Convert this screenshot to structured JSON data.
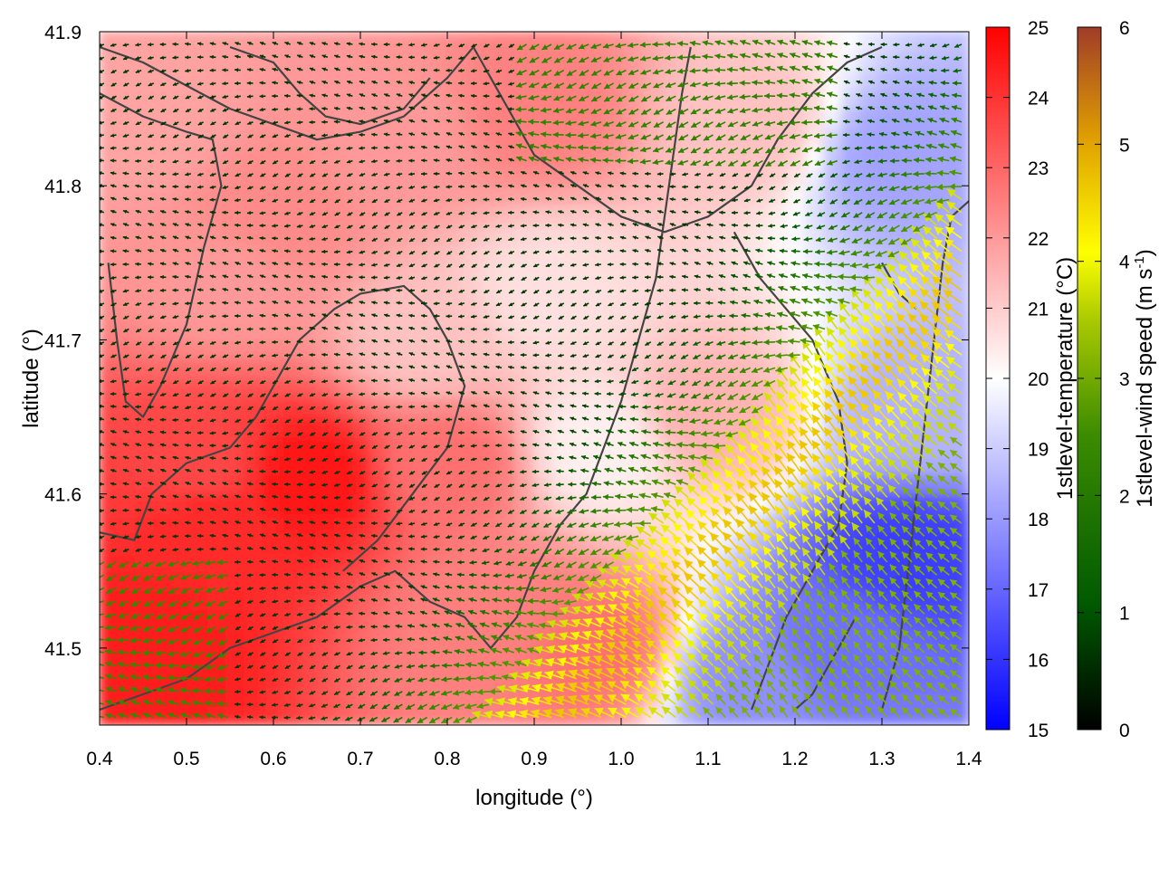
{
  "chart_data": {
    "type": "heatmap",
    "xlabel": "longitude (°)",
    "ylabel": "latitude (°)",
    "xlim": [
      0.4,
      1.4
    ],
    "ylim": [
      41.45,
      41.9
    ],
    "x_ticks": [
      "0.4",
      "0.5",
      "0.6",
      "0.7",
      "0.8",
      "0.9",
      "1.0",
      "1.1",
      "1.2",
      "1.3",
      "1.4"
    ],
    "y_ticks": [
      "41.5",
      "41.6",
      "41.7",
      "41.8",
      "41.9"
    ],
    "temperature": {
      "label": "1stlevel-temperature (°C)",
      "range": [
        15,
        25
      ],
      "ticks": [
        "15",
        "16",
        "17",
        "18",
        "19",
        "20",
        "21",
        "22",
        "23",
        "24",
        "25"
      ],
      "colors": [
        "#0000ff",
        "#ffffff",
        "#ff0000"
      ],
      "regions": [
        {
          "lon": 0.45,
          "lat": 41.5,
          "t": 24.5
        },
        {
          "lon": 0.53,
          "lat": 41.58,
          "t": 24.2
        },
        {
          "lon": 0.52,
          "lat": 41.62,
          "t": 23.6
        },
        {
          "lon": 0.64,
          "lat": 41.61,
          "t": 24.6
        },
        {
          "lon": 0.8,
          "lat": 41.62,
          "t": 22.8
        },
        {
          "lon": 0.85,
          "lat": 41.52,
          "t": 22.5
        },
        {
          "lon": 0.6,
          "lat": 41.78,
          "t": 22.3
        },
        {
          "lon": 0.75,
          "lat": 41.83,
          "t": 22.0
        },
        {
          "lon": 0.9,
          "lat": 41.85,
          "t": 22.5
        },
        {
          "lon": 1.15,
          "lat": 41.84,
          "t": 21.2
        },
        {
          "lon": 1.32,
          "lat": 41.82,
          "t": 18.2
        },
        {
          "lon": 1.35,
          "lat": 41.65,
          "t": 18.5
        },
        {
          "lon": 1.33,
          "lat": 41.56,
          "t": 16.2
        },
        {
          "lon": 1.25,
          "lat": 41.5,
          "t": 17.2
        },
        {
          "lon": 1.15,
          "lat": 41.48,
          "t": 17.8
        },
        {
          "lon": 0.98,
          "lat": 41.63,
          "t": 20.3
        },
        {
          "lon": 1.1,
          "lat": 41.65,
          "t": 21.5
        },
        {
          "lon": 0.78,
          "lat": 41.7,
          "t": 21.2
        },
        {
          "lon": 0.55,
          "lat": 41.74,
          "t": 22.0
        },
        {
          "lon": 0.45,
          "lat": 41.84,
          "t": 21.8
        },
        {
          "lon": 0.97,
          "lat": 41.5,
          "t": 22.8
        },
        {
          "lon": 0.92,
          "lat": 41.73,
          "t": 20.6
        }
      ]
    },
    "wind": {
      "label": "1stlevel-wind speed (m s⁻¹)",
      "label_main": "1stlevel-wind speed (m s",
      "label_sup": "-1",
      "label_end": ")",
      "range": [
        0,
        6
      ],
      "ticks": [
        "0",
        "1",
        "2",
        "3",
        "4",
        "5",
        "6"
      ],
      "colors": [
        "#000000",
        "#005a00",
        "#3c8c00",
        "#a8c800",
        "#ffff00",
        "#e0a000",
        "#a03c28"
      ]
    },
    "contours": [
      [
        [
          0.4,
          41.89
        ],
        [
          0.45,
          41.88
        ],
        [
          0.5,
          41.865
        ],
        [
          0.55,
          41.85
        ],
        [
          0.6,
          41.84
        ],
        [
          0.65,
          41.83
        ],
        [
          0.7,
          41.835
        ],
        [
          0.75,
          41.845
        ],
        [
          0.8,
          41.87
        ],
        [
          0.83,
          41.89
        ]
      ],
      [
        [
          0.4,
          41.86
        ],
        [
          0.45,
          41.845
        ],
        [
          0.5,
          41.835
        ],
        [
          0.53,
          41.83
        ],
        [
          0.54,
          41.8
        ],
        [
          0.52,
          41.76
        ],
        [
          0.5,
          41.71
        ],
        [
          0.47,
          41.67
        ],
        [
          0.45,
          41.65
        ],
        [
          0.43,
          41.66
        ],
        [
          0.42,
          41.7
        ],
        [
          0.41,
          41.75
        ]
      ],
      [
        [
          0.4,
          41.575
        ],
        [
          0.44,
          41.57
        ],
        [
          0.46,
          41.6
        ],
        [
          0.5,
          41.62
        ],
        [
          0.55,
          41.63
        ],
        [
          0.58,
          41.65
        ],
        [
          0.6,
          41.67
        ],
        [
          0.63,
          41.7
        ],
        [
          0.67,
          41.72
        ],
        [
          0.7,
          41.73
        ],
        [
          0.75,
          41.735
        ],
        [
          0.78,
          41.72
        ],
        [
          0.8,
          41.7
        ],
        [
          0.82,
          41.67
        ],
        [
          0.8,
          41.63
        ],
        [
          0.76,
          41.6
        ],
        [
          0.72,
          41.57
        ],
        [
          0.68,
          41.55
        ]
      ],
      [
        [
          0.4,
          41.46
        ],
        [
          0.45,
          41.47
        ],
        [
          0.5,
          41.48
        ],
        [
          0.55,
          41.5
        ],
        [
          0.6,
          41.51
        ],
        [
          0.65,
          41.52
        ],
        [
          0.7,
          41.54
        ],
        [
          0.74,
          41.55
        ],
        [
          0.78,
          41.53
        ],
        [
          0.82,
          41.52
        ],
        [
          0.85,
          41.5
        ],
        [
          0.88,
          41.52
        ],
        [
          0.9,
          41.55
        ],
        [
          0.93,
          41.58
        ],
        [
          0.96,
          41.6
        ],
        [
          0.98,
          41.63
        ],
        [
          1.0,
          41.66
        ],
        [
          1.02,
          41.7
        ],
        [
          1.04,
          41.74
        ],
        [
          1.05,
          41.78
        ],
        [
          1.06,
          41.82
        ],
        [
          1.07,
          41.86
        ],
        [
          1.08,
          41.89
        ]
      ],
      [
        [
          0.55,
          41.89
        ],
        [
          0.6,
          41.88
        ],
        [
          0.63,
          41.86
        ],
        [
          0.66,
          41.845
        ],
        [
          0.7,
          41.84
        ],
        [
          0.75,
          41.85
        ],
        [
          0.78,
          41.87
        ]
      ],
      [
        [
          0.83,
          41.89
        ],
        [
          0.86,
          41.86
        ],
        [
          0.9,
          41.82
        ],
        [
          0.95,
          41.8
        ],
        [
          1.0,
          41.78
        ],
        [
          1.05,
          41.77
        ],
        [
          1.1,
          41.78
        ],
        [
          1.15,
          41.8
        ],
        [
          1.18,
          41.83
        ],
        [
          1.22,
          41.86
        ],
        [
          1.26,
          41.88
        ],
        [
          1.3,
          41.89
        ]
      ],
      [
        [
          1.13,
          41.77
        ],
        [
          1.16,
          41.74
        ],
        [
          1.19,
          41.72
        ],
        [
          1.22,
          41.7
        ],
        [
          1.25,
          41.66
        ],
        [
          1.26,
          41.62
        ],
        [
          1.25,
          41.58
        ],
        [
          1.22,
          41.55
        ],
        [
          1.19,
          41.52
        ],
        [
          1.17,
          41.49
        ],
        [
          1.15,
          41.46
        ]
      ],
      [
        [
          1.3,
          41.46
        ],
        [
          1.32,
          41.5
        ],
        [
          1.33,
          41.55
        ],
        [
          1.34,
          41.6
        ],
        [
          1.35,
          41.65
        ],
        [
          1.36,
          41.7
        ],
        [
          1.37,
          41.75
        ],
        [
          1.38,
          41.78
        ],
        [
          1.4,
          41.79
        ]
      ],
      [
        [
          1.2,
          41.46
        ],
        [
          1.22,
          41.47
        ],
        [
          1.25,
          41.5
        ],
        [
          1.27,
          41.52
        ]
      ],
      [
        [
          1.3,
          41.75
        ],
        [
          1.32,
          41.73
        ],
        [
          1.34,
          41.72
        ]
      ]
    ]
  }
}
